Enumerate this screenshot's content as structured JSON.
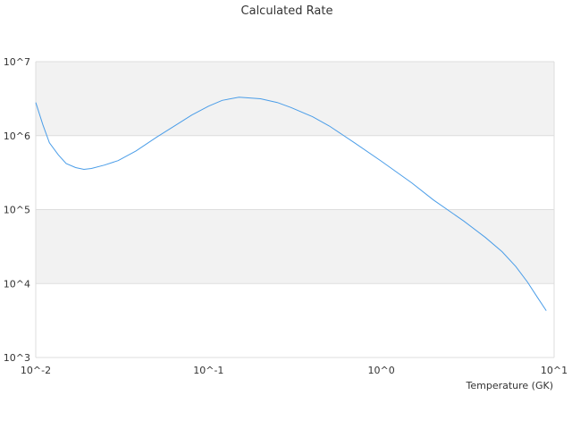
{
  "chart_data": {
    "type": "line",
    "title": "Calculated Rate",
    "xlabel": "Temperature (GK)",
    "ylabel": "",
    "x_scale": "log",
    "y_scale": "log",
    "xlim": [
      0.01,
      10
    ],
    "ylim": [
      1000,
      10000000
    ],
    "x_ticks": [
      {
        "value": 0.01,
        "label": "10^-2"
      },
      {
        "value": 0.1,
        "label": "10^-1"
      },
      {
        "value": 1,
        "label": "10^0"
      },
      {
        "value": 10,
        "label": "10^1"
      }
    ],
    "y_ticks": [
      {
        "value": 1000,
        "label": "10^3"
      },
      {
        "value": 10000,
        "label": "10^4"
      },
      {
        "value": 100000,
        "label": "10^5"
      },
      {
        "value": 1000000,
        "label": "10^6"
      },
      {
        "value": 10000000,
        "label": "10^7"
      }
    ],
    "grid": true,
    "band_fill": "#f2f2f2",
    "line_color": "#4a9de8",
    "series": [
      {
        "x": [
          0.01,
          0.011,
          0.012,
          0.0135,
          0.015,
          0.017,
          0.019,
          0.021,
          0.025,
          0.03,
          0.038,
          0.05,
          0.065,
          0.08,
          0.1,
          0.12,
          0.15,
          0.2,
          0.25,
          0.3,
          0.4,
          0.5,
          0.7,
          1.0,
          1.5,
          2.0,
          3.0,
          4.0,
          5.0,
          6.0,
          7.0,
          8.0,
          9.0
        ],
        "y": [
          2800000,
          1400000,
          800000,
          550000,
          420000,
          370000,
          350000,
          360000,
          400000,
          460000,
          620000,
          950000,
          1400000,
          1900000,
          2500000,
          3000000,
          3300000,
          3150000,
          2800000,
          2400000,
          1800000,
          1350000,
          800000,
          450000,
          230000,
          135000,
          70000,
          42000,
          27000,
          17000,
          10500,
          6500,
          4300
        ]
      }
    ]
  }
}
